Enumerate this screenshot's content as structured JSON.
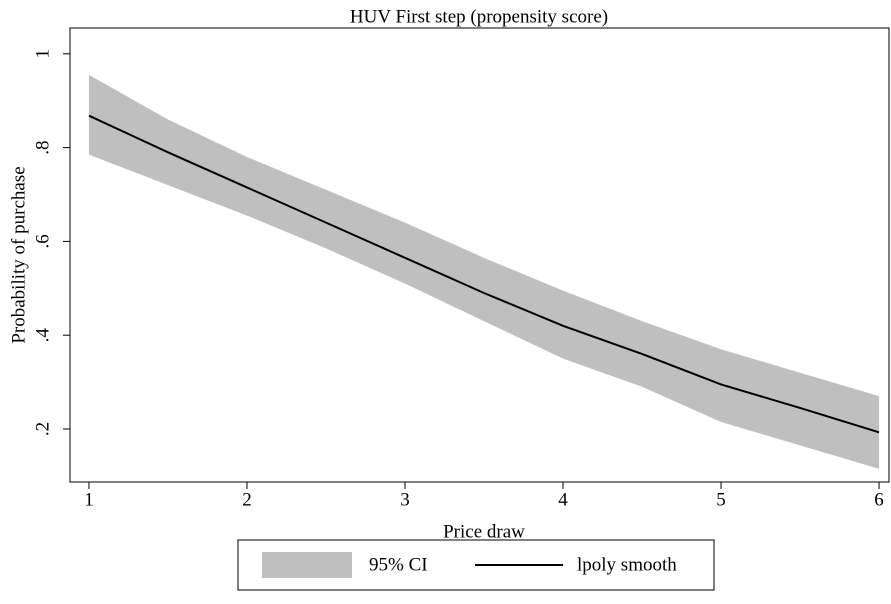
{
  "chart_data": {
    "type": "line",
    "title": "HUV First step (propensity score)",
    "x_label": "Price draw",
    "y_label": "Probability of purchase",
    "x": [
      1,
      1.5,
      2,
      2.5,
      3,
      3.5,
      4,
      4.5,
      5,
      5.5,
      6
    ],
    "series": [
      {
        "name": "95% CI",
        "color": "#bfbfbf",
        "kind": "band",
        "lower": [
          0.785,
          0.72,
          0.655,
          0.585,
          0.51,
          0.43,
          0.35,
          0.29,
          0.215,
          0.165,
          0.115
        ],
        "upper": [
          0.955,
          0.86,
          0.78,
          0.71,
          0.64,
          0.565,
          0.495,
          0.43,
          0.37,
          0.32,
          0.27
        ]
      },
      {
        "name": "lpoly smooth",
        "color": "#000000",
        "kind": "line",
        "values": [
          0.868,
          0.79,
          0.715,
          0.64,
          0.565,
          0.49,
          0.42,
          0.36,
          0.295,
          0.245,
          0.193
        ]
      }
    ],
    "xlim": [
      0.88,
      6.063
    ],
    "xticks": [
      1,
      2,
      3,
      4,
      5,
      6
    ],
    "ylim": [
      0.087,
      1.055
    ],
    "yticks": [
      {
        "value": 0.2,
        "label": ".2"
      },
      {
        "value": 0.4,
        "label": ".4"
      },
      {
        "value": 0.6,
        "label": ".6"
      },
      {
        "value": 0.8,
        "label": ".8"
      },
      1
    ],
    "legend": "bottom"
  }
}
